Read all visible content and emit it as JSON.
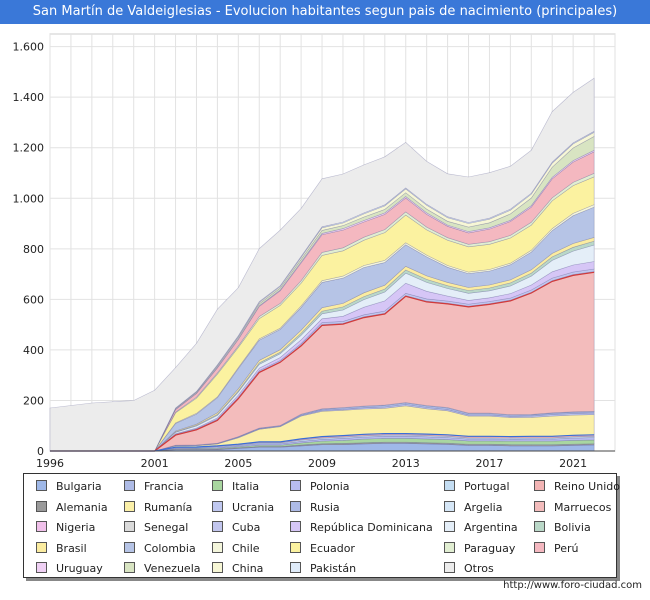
{
  "chart_data": {
    "type": "area",
    "stacked": true,
    "title": "San Martín de Valdeiglesias - Evolucion habitantes segun pais de nacimiento (principales)",
    "years": [
      1996,
      1998,
      2000,
      2001,
      2002,
      2003,
      2004,
      2005,
      2006,
      2007,
      2008,
      2009,
      2010,
      2011,
      2012,
      2013,
      2014,
      2015,
      2016,
      2017,
      2018,
      2019,
      2020,
      2021,
      2022
    ],
    "x_ticks": [
      1996,
      2001,
      2005,
      2009,
      2013,
      2017,
      2021
    ],
    "y_ticks": [
      0,
      200,
      400,
      600,
      800,
      1000,
      1200,
      1400,
      1600
    ],
    "y_tick_labels": [
      "0",
      "200",
      "400",
      "600",
      "800",
      "1.000",
      "1.200",
      "1.400",
      "1.600"
    ],
    "ylim": [
      0,
      1650
    ],
    "total_foreign_born": [
      0,
      0,
      0,
      10,
      170,
      240,
      340,
      480,
      610,
      680,
      860,
      950,
      970,
      980,
      1050,
      1080,
      1040,
      1000,
      960,
      980,
      1020,
      1080,
      1200,
      1290,
      1300
    ],
    "total_including_otros": [
      170,
      190,
      200,
      250,
      330,
      430,
      560,
      670,
      820,
      900,
      1050,
      1140,
      1160,
      1170,
      1240,
      1260,
      1210,
      1170,
      1140,
      1160,
      1190,
      1250,
      1400,
      1490,
      1510
    ],
    "series": [
      {
        "name": "Bulgaria",
        "color": "#9fb8e8",
        "values": [
          0,
          0,
          0,
          0,
          5,
          5,
          5,
          10,
          15,
          15,
          20,
          25,
          25,
          28,
          30,
          30,
          28,
          26,
          22,
          22,
          20,
          20,
          20,
          22,
          24
        ]
      },
      {
        "name": "Alemania",
        "color": "#9a9a9a",
        "values": [
          0,
          0,
          0,
          0,
          2,
          2,
          3,
          3,
          3,
          3,
          4,
          4,
          5,
          5,
          5,
          5,
          5,
          5,
          5,
          5,
          5,
          5,
          5,
          5,
          5
        ]
      },
      {
        "name": "Italia",
        "color": "#a9d6a0",
        "values": [
          0,
          0,
          0,
          0,
          2,
          3,
          3,
          4,
          5,
          5,
          8,
          10,
          12,
          14,
          15,
          15,
          15,
          14,
          13,
          13,
          14,
          14,
          14,
          15,
          15
        ]
      },
      {
        "name": "Polonia",
        "color": "#b8bcf0",
        "values": [
          0,
          0,
          0,
          0,
          2,
          2,
          3,
          4,
          5,
          5,
          6,
          7,
          8,
          8,
          8,
          8,
          8,
          8,
          7,
          7,
          7,
          8,
          8,
          9,
          9
        ]
      },
      {
        "name": "Portugal",
        "color": "#c4ddf2",
        "values": [
          0,
          0,
          0,
          0,
          2,
          2,
          3,
          3,
          4,
          4,
          5,
          5,
          5,
          5,
          5,
          5,
          5,
          5,
          5,
          5,
          5,
          5,
          5,
          5,
          5
        ]
      },
      {
        "name": "Reino Unido",
        "color": "#f2b4b4",
        "values": [
          0,
          0,
          0,
          0,
          2,
          2,
          3,
          3,
          4,
          4,
          5,
          6,
          6,
          6,
          6,
          6,
          6,
          6,
          6,
          6,
          6,
          6,
          6,
          6,
          6
        ]
      },
      {
        "name": "Rumanía",
        "color": "#fbf0a8",
        "values": [
          0,
          0,
          0,
          0,
          5,
          5,
          8,
          25,
          50,
          60,
          90,
          100,
          100,
          100,
          100,
          110,
          100,
          95,
          80,
          80,
          75,
          75,
          80,
          80,
          80
        ]
      },
      {
        "name": "Ucrania",
        "color": "#c0c8f0",
        "values": [
          0,
          0,
          0,
          0,
          1,
          1,
          1,
          2,
          2,
          2,
          3,
          4,
          4,
          5,
          5,
          5,
          5,
          5,
          5,
          5,
          5,
          5,
          6,
          6,
          6
        ]
      },
      {
        "name": "Rusia",
        "color": "#aebbe6",
        "values": [
          0,
          0,
          0,
          0,
          1,
          1,
          1,
          2,
          2,
          2,
          3,
          4,
          5,
          5,
          6,
          6,
          6,
          6,
          5,
          5,
          5,
          5,
          5,
          5,
          5
        ]
      },
      {
        "name": "Argelia",
        "color": "#d5e6f6",
        "values": [
          0,
          0,
          0,
          0,
          1,
          1,
          1,
          1,
          1,
          1,
          2,
          2,
          2,
          2,
          2,
          2,
          2,
          2,
          2,
          2,
          2,
          2,
          2,
          2,
          2
        ]
      },
      {
        "name": "Marruecos",
        "color": "#f3bcbc",
        "values": [
          0,
          0,
          0,
          0,
          40,
          60,
          90,
          150,
          220,
          250,
          270,
          330,
          330,
          350,
          360,
          420,
          410,
          410,
          420,
          430,
          450,
          480,
          520,
          540,
          550
        ]
      },
      {
        "name": "Nigeria",
        "color": "#f0c0ea",
        "values": [
          0,
          0,
          0,
          0,
          1,
          1,
          1,
          1,
          1,
          1,
          2,
          2,
          2,
          2,
          2,
          2,
          2,
          2,
          2,
          2,
          2,
          2,
          2,
          2,
          2
        ]
      },
      {
        "name": "Senegal",
        "color": "#dadada",
        "values": [
          0,
          0,
          0,
          0,
          1,
          1,
          1,
          1,
          1,
          1,
          1,
          1,
          1,
          1,
          1,
          1,
          1,
          1,
          1,
          1,
          1,
          1,
          1,
          1,
          1
        ]
      },
      {
        "name": "Cuba",
        "color": "#c2c6ee",
        "values": [
          0,
          0,
          0,
          0,
          2,
          2,
          3,
          4,
          5,
          5,
          6,
          8,
          8,
          8,
          9,
          9,
          9,
          8,
          8,
          8,
          8,
          9,
          10,
          10,
          10
        ]
      },
      {
        "name": "República Dominicana",
        "color": "#d6c6f6",
        "values": [
          0,
          0,
          0,
          0,
          2,
          3,
          5,
          8,
          10,
          12,
          15,
          15,
          20,
          30,
          40,
          40,
          30,
          20,
          15,
          15,
          18,
          20,
          25,
          28,
          30
        ]
      },
      {
        "name": "Argentina",
        "color": "#e4eef8",
        "values": [
          0,
          0,
          0,
          0,
          5,
          8,
          10,
          12,
          15,
          15,
          18,
          20,
          25,
          30,
          35,
          40,
          35,
          30,
          28,
          28,
          30,
          35,
          45,
          55,
          65
        ]
      },
      {
        "name": "Bolivia",
        "color": "#bad8c8",
        "values": [
          0,
          0,
          0,
          0,
          2,
          3,
          4,
          5,
          6,
          6,
          8,
          10,
          12,
          12,
          12,
          12,
          12,
          11,
          11,
          11,
          12,
          12,
          14,
          15,
          15
        ]
      },
      {
        "name": "Brasil",
        "color": "#fbeca0",
        "values": [
          0,
          0,
          0,
          0,
          3,
          4,
          6,
          8,
          10,
          10,
          12,
          14,
          14,
          15,
          15,
          15,
          14,
          13,
          12,
          12,
          12,
          13,
          14,
          15,
          15
        ]
      },
      {
        "name": "Colombia",
        "color": "#b6c4e6",
        "values": [
          0,
          0,
          0,
          0,
          30,
          40,
          60,
          80,
          80,
          80,
          90,
          100,
          100,
          100,
          90,
          85,
          75,
          60,
          55,
          55,
          60,
          70,
          90,
          110,
          120
        ]
      },
      {
        "name": "Chile",
        "color": "#f4f6dc",
        "values": [
          0,
          0,
          0,
          0,
          2,
          3,
          3,
          4,
          5,
          5,
          6,
          7,
          8,
          8,
          8,
          8,
          7,
          7,
          6,
          6,
          6,
          7,
          8,
          9,
          10
        ]
      },
      {
        "name": "Ecuador",
        "color": "#fbf2a0",
        "values": [
          0,
          0,
          0,
          0,
          40,
          60,
          90,
          80,
          80,
          90,
          90,
          100,
          100,
          100,
          110,
          110,
          100,
          100,
          100,
          100,
          100,
          100,
          110,
          110,
          110
        ]
      },
      {
        "name": "Paraguay",
        "color": "#e1eed2",
        "values": [
          0,
          0,
          0,
          0,
          3,
          4,
          5,
          6,
          8,
          8,
          10,
          12,
          12,
          12,
          12,
          12,
          11,
          10,
          10,
          10,
          10,
          11,
          12,
          13,
          14
        ]
      },
      {
        "name": "Perú",
        "color": "#f4b8c0",
        "values": [
          0,
          0,
          0,
          0,
          10,
          15,
          20,
          25,
          40,
          50,
          70,
          70,
          70,
          60,
          60,
          55,
          50,
          45,
          45,
          50,
          55,
          60,
          75,
          80,
          85
        ]
      },
      {
        "name": "Uruguay",
        "color": "#efd0f4",
        "values": [
          0,
          0,
          0,
          0,
          1,
          1,
          2,
          2,
          3,
          3,
          4,
          5,
          6,
          6,
          6,
          6,
          6,
          5,
          5,
          5,
          5,
          6,
          6,
          6,
          6
        ]
      },
      {
        "name": "Venezuela",
        "color": "#d8e4c2",
        "values": [
          0,
          0,
          0,
          0,
          3,
          4,
          5,
          6,
          8,
          8,
          10,
          12,
          12,
          14,
          14,
          15,
          15,
          15,
          18,
          20,
          25,
          30,
          40,
          50,
          55
        ]
      },
      {
        "name": "China",
        "color": "#f7f7d6",
        "values": [
          0,
          0,
          0,
          0,
          1,
          2,
          3,
          4,
          5,
          6,
          8,
          10,
          10,
          12,
          14,
          15,
          15,
          14,
          14,
          14,
          15,
          15,
          16,
          16,
          16
        ]
      },
      {
        "name": "Pakistán",
        "color": "#e0ecfa",
        "values": [
          0,
          0,
          0,
          0,
          1,
          1,
          2,
          3,
          3,
          3,
          4,
          4,
          4,
          4,
          4,
          4,
          4,
          4,
          4,
          4,
          4,
          4,
          4,
          4,
          4
        ]
      },
      {
        "name": "Otros",
        "color": "#ececec",
        "values": [
          170,
          190,
          200,
          240,
          160,
          190,
          220,
          190,
          210,
          220,
          190,
          190,
          190,
          190,
          190,
          180,
          170,
          170,
          180,
          180,
          170,
          170,
          200,
          200,
          210
        ]
      }
    ]
  },
  "legend_colors": {
    "Bulgaria": "#9fb8e8",
    "Francia": "#aebbe6",
    "Italia": "#a9d6a0",
    "Polonia": "#b8bcf0",
    "Portugal": "#c4ddf2",
    "Reino Unido": "#f2b4b4",
    "Alemania": "#9a9a9a",
    "Rumanía": "#fbf0a8",
    "Ucrania": "#c0c8f0",
    "Rusia": "#aebbe6",
    "Argelia": "#d5e6f6",
    "Marruecos": "#f3bcbc",
    "Nigeria": "#f0c0ea",
    "Senegal": "#dadada",
    "Cuba": "#c2c6ee",
    "República Dominicana": "#d6c6f6",
    "Argentina": "#e4eef8",
    "Bolivia": "#bad8c8",
    "Brasil": "#fbeca0",
    "Colombia": "#b6c4e6",
    "Chile": "#f4f6dc",
    "Ecuador": "#fbf2a0",
    "Paraguay": "#e1eed2",
    "Perú": "#f4b8c0",
    "Uruguay": "#efd0f4",
    "Venezuela": "#d8e4c2",
    "China": "#f7f7d6",
    "Pakistán": "#e0ecfa",
    "Otros": "#ececec"
  },
  "legend_rows": [
    [
      "Bulgaria",
      "Francia",
      "Italia",
      "Polonia",
      "Portugal",
      "Reino Unido"
    ],
    [
      "Alemania",
      "Rumanía",
      "Ucrania",
      "Rusia",
      "Argelia",
      "Marruecos"
    ],
    [
      "Nigeria",
      "Senegal",
      "Cuba",
      "República Dominicana",
      "Argentina",
      "Bolivia"
    ],
    [
      "Brasil",
      "Colombia",
      "Chile",
      "Ecuador",
      "Paraguay",
      "Perú"
    ],
    [
      "Uruguay",
      "Venezuela",
      "China",
      "Pakistán",
      "Otros"
    ]
  ],
  "footer": {
    "url": "http://www.foro-ciudad.com"
  }
}
